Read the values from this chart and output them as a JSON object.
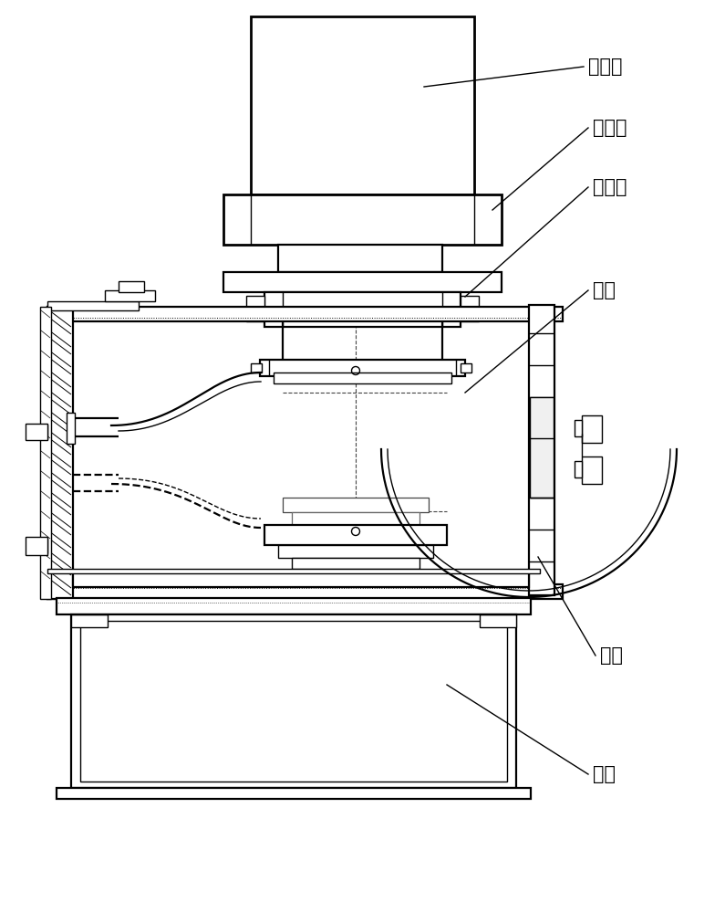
{
  "line_color": "#000000",
  "bg_color": "#ffffff",
  "label_fontsize": 15,
  "fig_width": 7.95,
  "fig_height": 10.0,
  "labels": {
    "oil_cyl": "油压缸",
    "piston": "活塞杆",
    "electrode": "热电极",
    "mold": "模具",
    "furnace": "炉体",
    "base": "底座"
  }
}
